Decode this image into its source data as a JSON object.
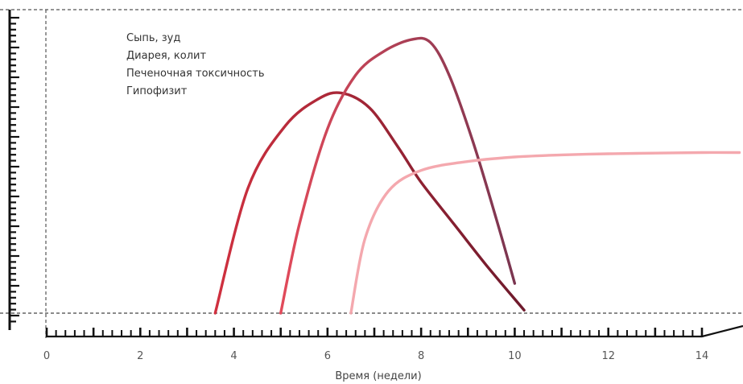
{
  "chart_data": {
    "type": "line",
    "xlabel": "Время (недели)",
    "ylabel": "",
    "xlim": [
      0,
      14.8
    ],
    "ylim": [
      0,
      1
    ],
    "x_ticks": [
      "0",
      "2",
      "4",
      "6",
      "8",
      "10",
      "12",
      "14"
    ],
    "legend_position": "top-left",
    "grid": false,
    "series": [
      {
        "name": "Сыпь, зуд",
        "color": "#6e1a2c",
        "gradient_start": "#d0303f",
        "x": [
          3.6,
          4.3,
          5.1,
          5.8,
          6.3,
          6.9,
          7.5,
          8.0,
          8.7,
          9.4,
          10.2
        ],
        "y": [
          0,
          0.42,
          0.63,
          0.72,
          0.74,
          0.69,
          0.56,
          0.44,
          0.3,
          0.16,
          0.01
        ]
      },
      {
        "name": "Диарея, колит",
        "color": "#7a3550",
        "gradient_start": "#e24a5a",
        "x": [
          5.0,
          5.4,
          6.0,
          6.6,
          7.2,
          7.8,
          8.2,
          8.6,
          9.1,
          9.6,
          10.0
        ],
        "y": [
          0,
          0.3,
          0.62,
          0.8,
          0.88,
          0.92,
          0.91,
          0.8,
          0.58,
          0.32,
          0.1
        ]
      },
      {
        "name": "Печеночная токсичность",
        "color": "#f4a8ae",
        "x": [
          6.5,
          6.8,
          7.3,
          8.0,
          9.0,
          10.0,
          11.0,
          12.0,
          13.0,
          14.0,
          14.8
        ],
        "y": [
          0,
          0.25,
          0.41,
          0.48,
          0.51,
          0.525,
          0.532,
          0.536,
          0.538,
          0.54,
          0.54
        ]
      },
      {
        "name": "Гипофизит",
        "color": "#ffffff",
        "x": [],
        "y": []
      }
    ]
  }
}
